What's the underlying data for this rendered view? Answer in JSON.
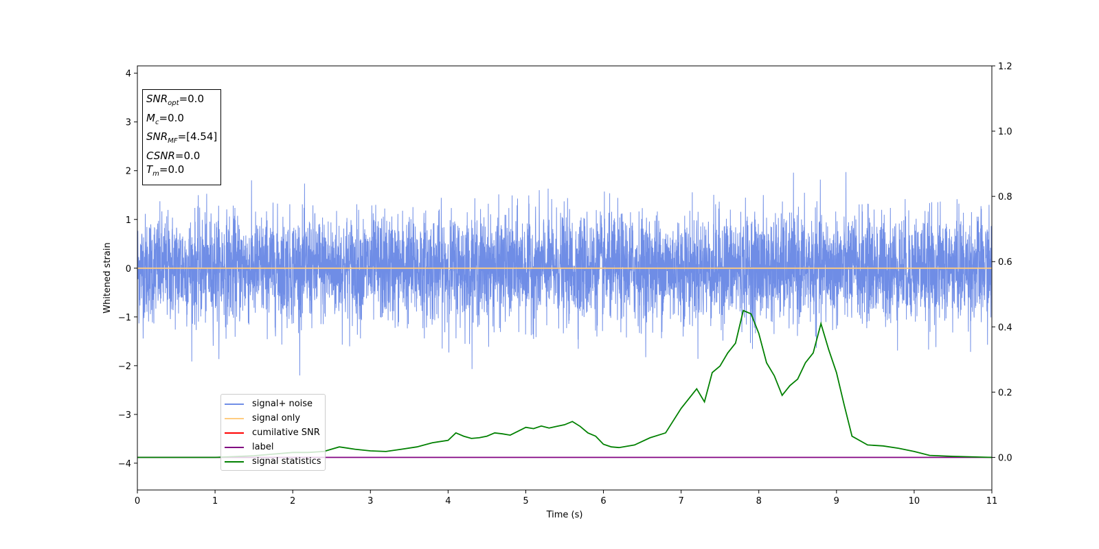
{
  "chart_data": {
    "type": "line",
    "xlabel": "Time (s)",
    "ylabel": "Whitened strain",
    "xlim": [
      0,
      11
    ],
    "ylim": [
      -4.55,
      4.15
    ],
    "y2lim": [
      -0.1,
      1.2
    ],
    "x_ticks": [
      "0",
      "1",
      "2",
      "3",
      "4",
      "5",
      "6",
      "7",
      "8",
      "9",
      "10",
      "11"
    ],
    "y_ticks": [
      "4",
      "3",
      "2",
      "1",
      "0",
      "−1",
      "−2",
      "−3",
      "−4"
    ],
    "y_tick_values": [
      4,
      3,
      2,
      1,
      0,
      -1,
      -2,
      -3,
      -4
    ],
    "y2_ticks": [
      "1.2",
      "1.0",
      "0.8",
      "0.6",
      "0.4",
      "0.2",
      "0.0"
    ],
    "y2_tick_values": [
      1.2,
      1.0,
      0.8,
      0.6,
      0.4,
      0.2,
      0.0
    ],
    "grid": false,
    "legend_position": "lower-left",
    "series": [
      {
        "name": "signal+ noise",
        "color": "#6f8de6",
        "axis": "left",
        "kind": "noise",
        "sample_rate_hz": 500,
        "amplitude_std": 0.55,
        "peak_max": 2.3,
        "peak_min": -2.2
      },
      {
        "name": "signal only",
        "color": "#ffcc80",
        "axis": "left",
        "x": [
          0,
          11
        ],
        "values": [
          0,
          0
        ]
      },
      {
        "name": "cumilative SNR",
        "color": "#ff0000",
        "axis": "right",
        "x": [],
        "values": []
      },
      {
        "name": "label",
        "color": "#800080",
        "axis": "right",
        "x": [
          0,
          11
        ],
        "values": [
          0,
          0
        ]
      },
      {
        "name": "signal statistics",
        "color": "#008000",
        "axis": "right",
        "x": [
          0,
          0.5,
          1,
          1.5,
          2,
          2.2,
          2.4,
          2.6,
          2.8,
          3,
          3.2,
          3.4,
          3.6,
          3.8,
          4,
          4.1,
          4.2,
          4.3,
          4.4,
          4.5,
          4.6,
          4.7,
          4.8,
          4.9,
          5,
          5.1,
          5.2,
          5.3,
          5.4,
          5.5,
          5.6,
          5.7,
          5.8,
          5.9,
          6,
          6.1,
          6.2,
          6.4,
          6.6,
          6.8,
          7,
          7.1,
          7.2,
          7.3,
          7.4,
          7.5,
          7.6,
          7.7,
          7.8,
          7.9,
          8,
          8.1,
          8.2,
          8.3,
          8.4,
          8.5,
          8.6,
          8.7,
          8.8,
          8.9,
          9,
          9.1,
          9.2,
          9.4,
          9.6,
          9.8,
          10,
          10.2,
          10.5,
          11
        ],
        "values": [
          0.0,
          0.0,
          0.0,
          0.005,
          0.015,
          0.015,
          0.018,
          0.032,
          0.025,
          0.02,
          0.018,
          0.025,
          0.032,
          0.045,
          0.052,
          0.075,
          0.065,
          0.058,
          0.06,
          0.065,
          0.075,
          0.072,
          0.068,
          0.08,
          0.092,
          0.088,
          0.096,
          0.09,
          0.095,
          0.1,
          0.11,
          0.095,
          0.075,
          0.065,
          0.04,
          0.032,
          0.03,
          0.038,
          0.06,
          0.075,
          0.15,
          0.18,
          0.21,
          0.17,
          0.26,
          0.28,
          0.32,
          0.35,
          0.45,
          0.44,
          0.38,
          0.29,
          0.25,
          0.19,
          0.22,
          0.24,
          0.29,
          0.32,
          0.41,
          0.33,
          0.26,
          0.16,
          0.065,
          0.038,
          0.035,
          0.028,
          0.018,
          0.006,
          0.003,
          0.0
        ]
      }
    ]
  },
  "info_box": {
    "snr_opt_label": "SNR",
    "snr_opt_sub": "opt",
    "snr_opt_value": "=0.0",
    "mc_label": "M",
    "mc_sub": "c",
    "mc_value": "=0.0",
    "snr_mf_label": "SNR",
    "snr_mf_sub": "MF",
    "snr_mf_value": "=[4.54]",
    "csnr_label": "CSNR",
    "csnr_value": "=0.0",
    "tm_label": "T",
    "tm_sub": "m",
    "tm_value": "=0.0"
  }
}
